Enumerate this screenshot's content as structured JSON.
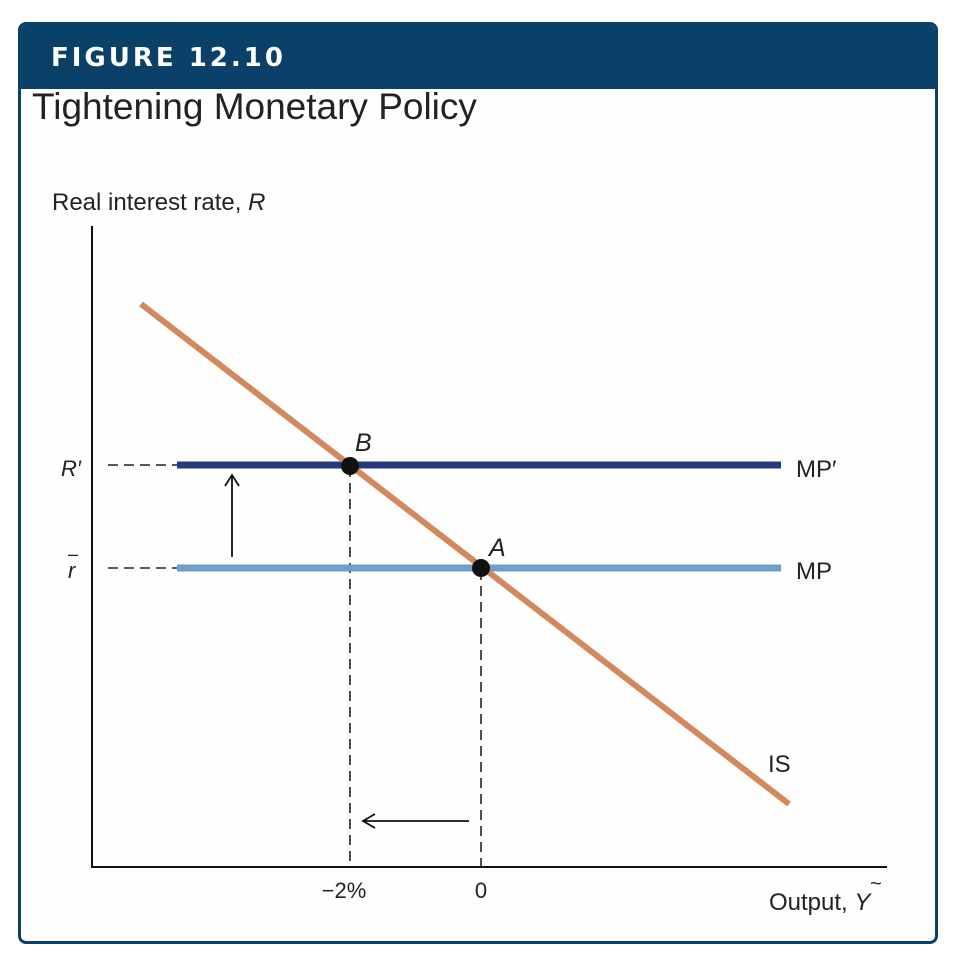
{
  "figure": {
    "number_label": "FIGURE 12.10",
    "title": "Tightening Monetary Policy"
  },
  "axes": {
    "y_label_text": "Real interest rate, ",
    "y_label_var": "R",
    "x_label_text": "Output, ",
    "x_label_var": "Y",
    "x_label_accent": "~"
  },
  "y_ticks": {
    "r_prime": "R′",
    "r_bar": "r",
    "r_bar_accent": "–"
  },
  "x_ticks": {
    "minus_two": "−2%",
    "zero": "0"
  },
  "curves": {
    "mp_prime": "MP′",
    "mp": "MP",
    "is": "IS"
  },
  "points": {
    "a": "A",
    "b": "B"
  },
  "colors": {
    "header": "#0b4068",
    "is_curve": "#d28a5c",
    "mp_prime": "#243a7e",
    "mp": "#6f9dc9"
  }
}
